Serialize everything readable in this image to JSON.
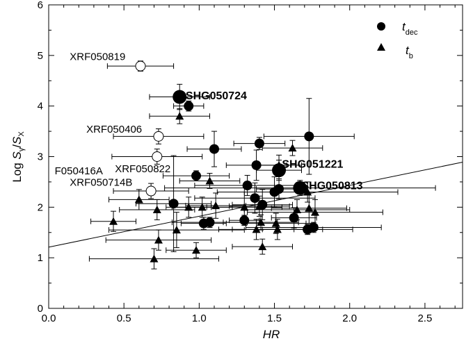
{
  "chart_data": {
    "type": "scatter",
    "xlabel": "HR",
    "ylabel_parts": {
      "main": "Log ",
      "s1": "S",
      "s1_sub": "γ",
      "slash": "/",
      "s2": "S",
      "s2_sub": "X"
    },
    "xlim": [
      0.0,
      2.75
    ],
    "ylim": [
      0,
      6
    ],
    "x_ticks": [
      "0.0",
      "0.5",
      "1.0",
      "1.5",
      "2.0",
      "2.5"
    ],
    "x_tick_values": [
      0.0,
      0.5,
      1.0,
      1.5,
      2.0,
      2.5
    ],
    "y_ticks": [
      "0",
      "1",
      "2",
      "3",
      "4",
      "5",
      "6"
    ],
    "y_tick_values": [
      0,
      1,
      2,
      3,
      4,
      5,
      6
    ],
    "legend": {
      "placement": "top-right",
      "entries": [
        {
          "symbol": "circle",
          "label": "t",
          "sub": "dec"
        },
        {
          "symbol": "triangle",
          "label": "t",
          "sub": "b"
        }
      ]
    },
    "fit_line": {
      "x": [
        0.0,
        2.75
      ],
      "y": [
        1.21,
        2.89
      ]
    },
    "series": [
      {
        "name": "t_dec",
        "marker": "circle-filled",
        "points": [
          {
            "x": 0.87,
            "y": 4.18,
            "xerr": 0.2,
            "yerr": 0.25,
            "big": true
          },
          {
            "x": 0.93,
            "y": 4.0,
            "xerr": 0.1,
            "yerr": 0.1
          },
          {
            "x": 1.1,
            "y": 3.15,
            "xerr": 0.18,
            "yerr": 0.35
          },
          {
            "x": 1.4,
            "y": 3.26,
            "xerr": 0.17,
            "yerr": 0.12
          },
          {
            "x": 1.73,
            "y": 3.4,
            "xerr": 0.3,
            "yerr": 0.75
          },
          {
            "x": 1.38,
            "y": 2.83,
            "xerr": 0.2,
            "yerr": 0.3
          },
          {
            "x": 1.53,
            "y": 2.73,
            "xerr": 0.15,
            "yerr": 0.2,
            "big": true
          },
          {
            "x": 0.98,
            "y": 2.62,
            "xerr": 0.22,
            "yerr": 0.1
          },
          {
            "x": 1.32,
            "y": 2.43,
            "xerr": 0.35,
            "yerr": 0.2
          },
          {
            "x": 1.5,
            "y": 2.3,
            "xerr": 0.2,
            "yerr": 0.3
          },
          {
            "x": 1.53,
            "y": 2.36,
            "xerr": 0.15,
            "yerr": 0.2
          },
          {
            "x": 1.67,
            "y": 2.38,
            "xerr": 0.9,
            "yerr": 0.15,
            "big": true
          },
          {
            "x": 1.37,
            "y": 2.18,
            "xerr": 0.4,
            "yerr": 0.3
          },
          {
            "x": 1.42,
            "y": 2.05,
            "xerr": 0.2,
            "yerr": 0.3
          },
          {
            "x": 0.83,
            "y": 2.07,
            "xerr": 0.25,
            "yerr": 0.95
          },
          {
            "x": 1.03,
            "y": 1.68,
            "xerr": 0.15,
            "yerr": 0.12
          },
          {
            "x": 1.07,
            "y": 1.7,
            "xerr": 0.25,
            "yerr": 0.1
          },
          {
            "x": 1.3,
            "y": 1.74,
            "xerr": 0.1,
            "yerr": 0.1
          },
          {
            "x": 1.63,
            "y": 1.79,
            "xerr": 0.15,
            "yerr": 0.2
          },
          {
            "x": 1.72,
            "y": 1.56,
            "xerr": 0.3,
            "yerr": 0.1
          },
          {
            "x": 1.76,
            "y": 1.6,
            "xerr": 0.45,
            "yerr": 0.1
          }
        ]
      },
      {
        "name": "t_b",
        "marker": "triangle-filled",
        "points": [
          {
            "x": 0.87,
            "y": 3.8,
            "xerr": 0.2,
            "yerr": 0.15
          },
          {
            "x": 1.62,
            "y": 3.17,
            "xerr": 0.2,
            "yerr": 0.15
          },
          {
            "x": 1.53,
            "y": 2.83,
            "xerr": 0.15,
            "yerr": 0.2
          },
          {
            "x": 1.07,
            "y": 2.52,
            "xerr": 0.2,
            "yerr": 0.15
          },
          {
            "x": 1.72,
            "y": 2.3,
            "xerr": 0.6,
            "yerr": 0.2
          },
          {
            "x": 0.6,
            "y": 2.15,
            "xerr": 0.2,
            "yerr": 0.2
          },
          {
            "x": 0.72,
            "y": 1.95,
            "xerr": 0.25,
            "yerr": 0.2
          },
          {
            "x": 0.93,
            "y": 2.0,
            "xerr": 0.15,
            "yerr": 0.2
          },
          {
            "x": 1.02,
            "y": 2.0,
            "xerr": 0.2,
            "yerr": 0.2
          },
          {
            "x": 1.11,
            "y": 2.03,
            "xerr": 0.2,
            "yerr": 0.25
          },
          {
            "x": 1.3,
            "y": 2.0,
            "xerr": 0.25,
            "yerr": 0.3
          },
          {
            "x": 1.4,
            "y": 2.02,
            "xerr": 0.2,
            "yerr": 0.2
          },
          {
            "x": 1.65,
            "y": 1.95,
            "xerr": 0.35,
            "yerr": 0.2
          },
          {
            "x": 1.73,
            "y": 1.98,
            "xerr": 0.25,
            "yerr": 0.3
          },
          {
            "x": 1.77,
            "y": 1.9,
            "xerr": 0.45,
            "yerr": 0.25
          },
          {
            "x": 0.43,
            "y": 1.72,
            "xerr": 0.15,
            "yerr": 0.2
          },
          {
            "x": 0.85,
            "y": 1.55,
            "xerr": 0.45,
            "yerr": 0.35
          },
          {
            "x": 1.38,
            "y": 1.56,
            "xerr": 0.25,
            "yerr": 0.2
          },
          {
            "x": 1.41,
            "y": 1.7,
            "xerr": 0.25,
            "yerr": 0.15
          },
          {
            "x": 1.51,
            "y": 1.68,
            "xerr": 0.2,
            "yerr": 0.2
          },
          {
            "x": 1.52,
            "y": 1.56,
            "xerr": 0.3,
            "yerr": 0.2
          },
          {
            "x": 0.73,
            "y": 1.35,
            "xerr": 0.35,
            "yerr": 0.2
          },
          {
            "x": 0.98,
            "y": 1.15,
            "xerr": 0.2,
            "yerr": 0.15
          },
          {
            "x": 1.42,
            "y": 1.22,
            "xerr": 0.2,
            "yerr": 0.15
          },
          {
            "x": 0.7,
            "y": 0.98,
            "xerr": 0.43,
            "yerr": 0.2
          }
        ]
      },
      {
        "name": "open",
        "marker": "circle-open",
        "points": [
          {
            "x": 0.61,
            "y": 4.79,
            "xerr": 0.22,
            "yerr": 0.1
          },
          {
            "x": 0.73,
            "y": 3.4,
            "xerr": 0.3,
            "yerr": 0.15
          },
          {
            "x": 0.72,
            "y": 3.0,
            "xerr": 0.3,
            "yerr": 0.15
          },
          {
            "x": 0.68,
            "y": 2.32,
            "xerr": 0.25,
            "yerr": 0.15
          }
        ]
      }
    ],
    "annotations": [
      {
        "text": "XRF050819",
        "x": 0.14,
        "y": 4.98,
        "bold": false
      },
      {
        "text": "SHG050724",
        "x": 0.91,
        "y": 4.2,
        "bold": true
      },
      {
        "text": "XRF050406",
        "x": 0.25,
        "y": 3.54,
        "bold": false
      },
      {
        "text": "XRF050822",
        "x": 0.44,
        "y": 2.76,
        "bold": false
      },
      {
        "text": "F050416A",
        "x": 0.04,
        "y": 2.72,
        "bold": false
      },
      {
        "text": "XRF050714B",
        "x": 0.14,
        "y": 2.49,
        "bold": false
      },
      {
        "text": "SHG051221",
        "x": 1.55,
        "y": 2.85,
        "bold": true
      },
      {
        "text": "SHG050813",
        "x": 1.68,
        "y": 2.42,
        "bold": true
      }
    ]
  }
}
